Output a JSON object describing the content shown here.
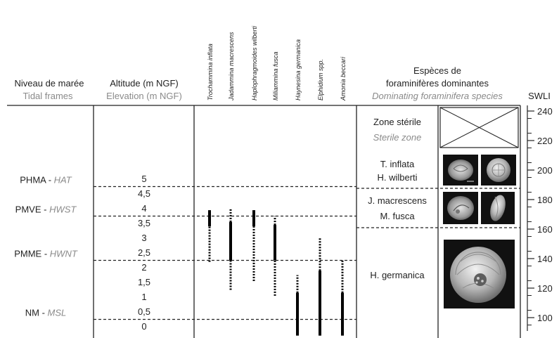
{
  "headers": {
    "tidal_fr": "Niveau de marée",
    "tidal_en": "Tidal frames",
    "alt_fr": "Altitude (m NGF)",
    "alt_en": "Elevation (m NGF)",
    "species_fr_1": "Espèces de",
    "species_fr_2": "foraminifères dominantes",
    "species_en": "Dominating foraminifera species",
    "swli": "SWLI"
  },
  "species": [
    "Trochammina inflata",
    "Jadammina macrescens",
    "Haplophragmoides wilberti",
    "Miliammina fusca",
    "Haynesina germanica",
    "Elphidium spp.",
    "Amonia beccari"
  ],
  "tidal_levels": [
    {
      "code": "PHMA",
      "code_en": "HAT",
      "altitude": 4.75
    },
    {
      "code": "PMVE",
      "code_en": "HWST",
      "altitude": 3.75
    },
    {
      "code": "PMME",
      "code_en": "HWNT",
      "altitude": 2.25
    },
    {
      "code": "NM",
      "code_en": "MSL",
      "altitude": 0.25
    }
  ],
  "altitude_labels": [
    "5",
    "4,5",
    "4",
    "3,5",
    "3",
    "2,5",
    "2",
    "1,5",
    "1",
    "0,5",
    "0"
  ],
  "ranges": [
    {
      "species": "Trochammina inflata",
      "solid": [
        3.4,
        3.95
      ],
      "dotted": [
        2.2,
        3.4
      ]
    },
    {
      "species": "Jadammina macrescens",
      "solid": [
        2.25,
        3.55
      ],
      "dotted_top": [
        3.55,
        4.0
      ],
      "dotted_bottom": [
        1.25,
        2.25
      ]
    },
    {
      "species": "Haplophragmoides wilberti",
      "solid": [
        3.4,
        3.95
      ],
      "dotted": [
        1.55,
        3.4
      ]
    },
    {
      "species": "Miliammina fusca",
      "solid": [
        2.25,
        3.45
      ],
      "dotted_top": [
        3.45,
        3.75
      ],
      "dotted_bottom": [
        1.05,
        2.25
      ]
    },
    {
      "species": "Haynesina germanica",
      "solid": [
        -0.3,
        1.15
      ],
      "dotted_top": [
        1.15,
        1.75
      ]
    },
    {
      "species": "Elphidium spp.",
      "solid": [
        -0.3,
        1.9
      ],
      "dotted_top": [
        1.9,
        3.0
      ]
    },
    {
      "species": "Amonia beccari",
      "solid": [
        -0.3,
        1.15
      ],
      "dotted_top": [
        1.15,
        2.25
      ]
    }
  ],
  "zones": [
    {
      "line1_fr": "Zone stérile",
      "line2_en": "Sterile zone"
    },
    {
      "line1": "T. inflata",
      "line2": "H. wilberti"
    },
    {
      "line1": "J. macrescens",
      "line2": "M. fusca"
    },
    {
      "line1": "H. germanica"
    }
  ],
  "swli_ticks": [
    "240",
    "220",
    "200",
    "180",
    "160",
    "140",
    "120",
    "100"
  ]
}
